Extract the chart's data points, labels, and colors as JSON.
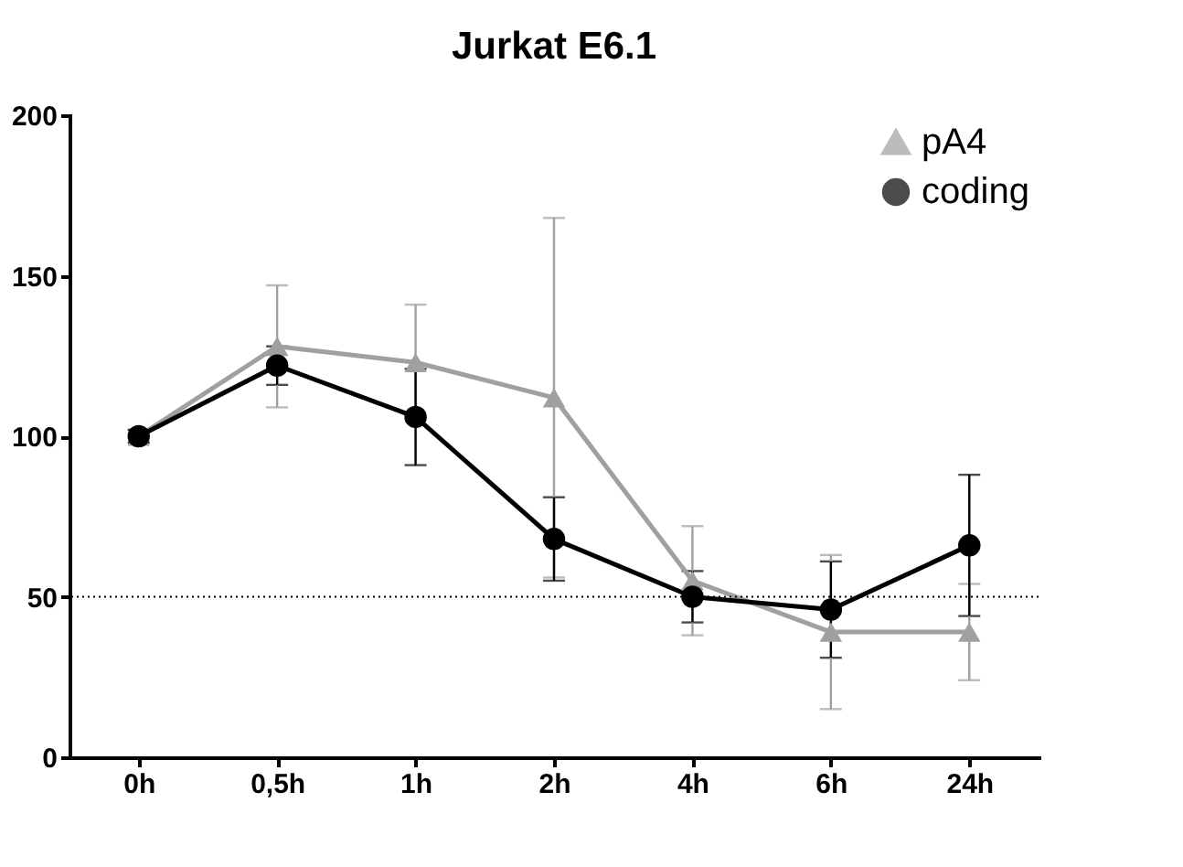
{
  "chart_data": {
    "type": "line",
    "title": "Jurkat E6.1",
    "categories": [
      "0h",
      "0,5h",
      "1h",
      "2h",
      "4h",
      "6h",
      "24h"
    ],
    "series": [
      {
        "name": "pA4",
        "color": "#a0a0a0",
        "marker": "triangle",
        "values": [
          100,
          128,
          123,
          112,
          55,
          39,
          39
        ],
        "errors": [
          2,
          19,
          18,
          56,
          17,
          24,
          15
        ]
      },
      {
        "name": "coding",
        "color": "#000000",
        "marker": "circle",
        "values": [
          100,
          122,
          106,
          68,
          50,
          46,
          66
        ],
        "errors": [
          2,
          6,
          15,
          13,
          8,
          15,
          22
        ]
      }
    ],
    "ylim": [
      0,
      200
    ],
    "yticks": [
      0,
      50,
      100,
      150,
      200
    ],
    "grid": false,
    "legend": "top right",
    "line_style": "solid",
    "ref_lines": [
      {
        "axis": "y",
        "value": 50,
        "line_style": "dotted",
        "color": "#000000"
      }
    ]
  }
}
